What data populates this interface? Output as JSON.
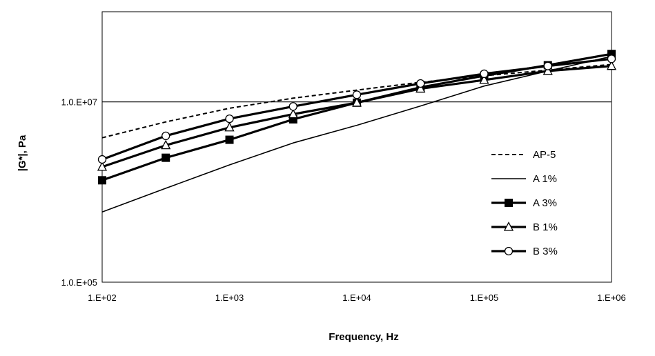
{
  "chart_data": {
    "type": "line",
    "title": "",
    "xlabel": "Frequency, Hz",
    "ylabel": "|G*|, Pa",
    "x_scale": "log",
    "y_scale": "log",
    "xlim": [
      100,
      1000000
    ],
    "ylim": [
      100000,
      100000000
    ],
    "x_ticks": [
      100,
      1000,
      10000,
      100000,
      1000000
    ],
    "x_tick_labels": [
      "1.E+02",
      "1.E+03",
      "1.E+04",
      "1.E+05",
      "1.E+06"
    ],
    "y_ticks": [
      100000,
      10000000
    ],
    "y_tick_labels": [
      "1.0.E+05",
      "1.0.E+07"
    ],
    "gridlines_y": [
      10000000
    ],
    "legend_position": "right",
    "series": [
      {
        "name": "AP-5",
        "style": "dashed",
        "marker": "none",
        "color": "#000000",
        "x": [
          100,
          316,
          1000,
          3162,
          10000,
          31623,
          100000,
          316228,
          1000000
        ],
        "y": [
          4000000,
          6000000,
          8500000,
          11000000,
          13500000,
          16500000,
          19500000,
          22500000,
          26000000
        ]
      },
      {
        "name": "A 1%",
        "style": "solid-thin",
        "marker": "none",
        "color": "#000000",
        "x": [
          100,
          316,
          1000,
          3162,
          10000,
          31623,
          100000,
          316228,
          1000000
        ],
        "y": [
          600000,
          1100000,
          2000000,
          3500000,
          5500000,
          9000000,
          15000000,
          22000000,
          32000000
        ]
      },
      {
        "name": "A 3%",
        "style": "solid-thick",
        "marker": "filled-square",
        "color": "#000000",
        "x": [
          100,
          316,
          1000,
          3162,
          10000,
          31623,
          100000,
          316228,
          1000000
        ],
        "y": [
          1350000,
          2400000,
          3800000,
          6400000,
          9800000,
          14500000,
          19500000,
          25500000,
          34000000
        ]
      },
      {
        "name": "B 1%",
        "style": "solid-thick",
        "marker": "open-triangle",
        "color": "#000000",
        "x": [
          100,
          316,
          1000,
          3162,
          10000,
          31623,
          100000,
          316228,
          1000000
        ],
        "y": [
          1900000,
          3300000,
          5200000,
          7300000,
          9800000,
          14000000,
          17500000,
          22000000,
          25000000
        ]
      },
      {
        "name": "B 3%",
        "style": "solid-thick",
        "marker": "open-circle",
        "color": "#000000",
        "x": [
          100,
          316,
          1000,
          3162,
          10000,
          31623,
          100000,
          316228,
          1000000
        ],
        "y": [
          2300000,
          4200000,
          6500000,
          8900000,
          12000000,
          16000000,
          20500000,
          25000000,
          30000000
        ]
      }
    ]
  }
}
